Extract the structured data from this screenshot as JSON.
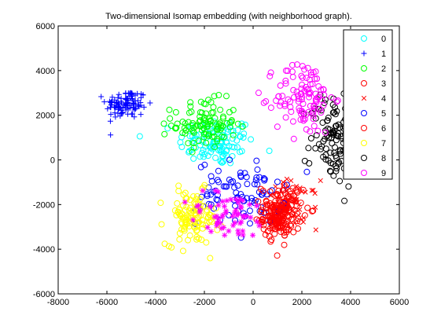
{
  "chart_data": {
    "type": "scatter",
    "title": "Two-dimensional Isomap embedding (with neighborhood graph).",
    "xlabel": "",
    "ylabel": "",
    "xlim": [
      -8000,
      6000
    ],
    "ylim": [
      -6000,
      6000
    ],
    "xticks": [
      -8000,
      -6000,
      -4000,
      -2000,
      0,
      2000,
      4000,
      6000
    ],
    "yticks": [
      -6000,
      -4000,
      -2000,
      0,
      2000,
      4000,
      6000
    ],
    "grid": false,
    "legend_position": "top-right",
    "series": [
      {
        "name": "0",
        "marker": "circle",
        "color": "#00ffff",
        "center": [
          -1500,
          800
        ],
        "spread": [
          1300,
          900
        ],
        "count": 110
      },
      {
        "name": "1",
        "marker": "plus",
        "color": "#0000ff",
        "center": [
          -5200,
          2500
        ],
        "spread": [
          700,
          550
        ],
        "count": 110
      },
      {
        "name": "2",
        "marker": "circle",
        "color": "#00ff00",
        "center": [
          -2000,
          1600
        ],
        "spread": [
          1100,
          900
        ],
        "count": 110
      },
      {
        "name": "3",
        "marker": "circle",
        "color": "#ff0000",
        "center": [
          1000,
          -2600
        ],
        "spread": [
          500,
          700
        ],
        "count": 110
      },
      {
        "name": "4",
        "marker": "x",
        "color": "#ff0000",
        "center": [
          1600,
          -2000
        ],
        "spread": [
          900,
          900
        ],
        "count": 50
      },
      {
        "name": "5",
        "marker": "circle",
        "color": "#0000ff",
        "center": [
          -500,
          -1500
        ],
        "spread": [
          1500,
          1200
        ],
        "count": 90
      },
      {
        "name": "6",
        "marker": "circle",
        "color": "#ff0000",
        "center": [
          1200,
          -2200
        ],
        "spread": [
          700,
          900
        ],
        "count": 100
      },
      {
        "name": "7",
        "marker": "circle",
        "color": "#ffff00",
        "center": [
          -2500,
          -2600
        ],
        "spread": [
          900,
          1000
        ],
        "count": 110
      },
      {
        "name": "8",
        "marker": "circle",
        "color": "#000000",
        "center": [
          3300,
          1000
        ],
        "spread": [
          800,
          1800
        ],
        "count": 110
      },
      {
        "name": "9",
        "marker": "circle",
        "color": "#ff00ff",
        "center": [
          2100,
          2800
        ],
        "spread": [
          1000,
          1400
        ],
        "count": 110
      },
      {
        "name": "",
        "marker": "asterisk",
        "color": "#ff00ff",
        "center": [
          -1000,
          -2500
        ],
        "spread": [
          1500,
          900
        ],
        "count": 60
      }
    ],
    "legend": [
      "0",
      "1",
      "2",
      "3",
      "4",
      "5",
      "6",
      "7",
      "8",
      "9"
    ]
  }
}
